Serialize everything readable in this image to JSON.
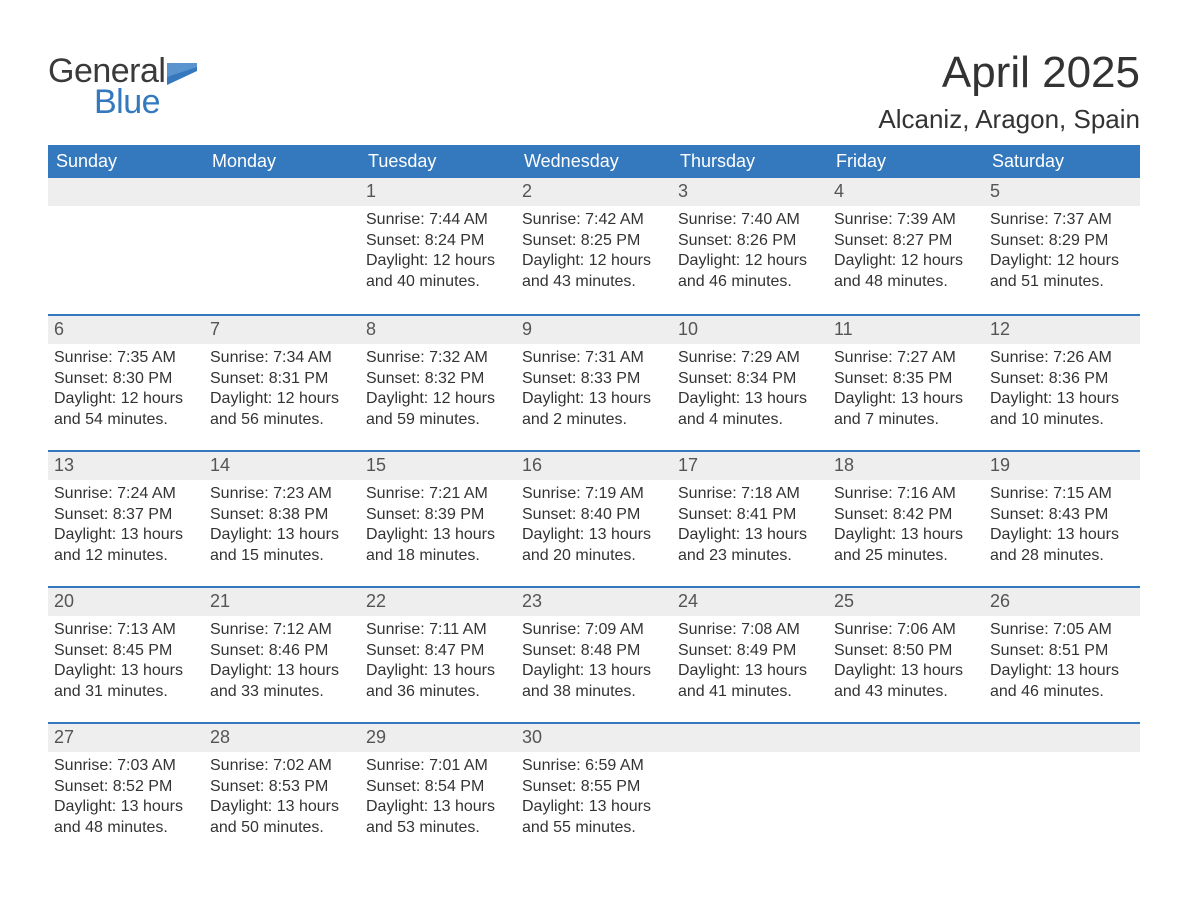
{
  "logo": {
    "word1": "General",
    "word2": "Blue",
    "word1_color": "#3a3a3a",
    "word2_color": "#3478bd",
    "flag_color": "#3478bd"
  },
  "title": "April 2025",
  "location": "Alcaniz, Aragon, Spain",
  "colors": {
    "header_bg": "#3478bd",
    "header_text": "#ffffff",
    "daynum_bg": "#eeeeee",
    "week_border": "#3478bd",
    "body_text": "#333333",
    "background": "#ffffff"
  },
  "fonts": {
    "title_size": 44,
    "location_size": 26,
    "day_header_size": 18,
    "daynum_size": 18,
    "detail_size": 16,
    "logo_size": 34
  },
  "day_headers": [
    "Sunday",
    "Monday",
    "Tuesday",
    "Wednesday",
    "Thursday",
    "Friday",
    "Saturday"
  ],
  "weeks": [
    [
      {
        "day": "",
        "sunrise": "",
        "sunset": "",
        "daylight1": "",
        "daylight2": ""
      },
      {
        "day": "",
        "sunrise": "",
        "sunset": "",
        "daylight1": "",
        "daylight2": ""
      },
      {
        "day": "1",
        "sunrise": "Sunrise: 7:44 AM",
        "sunset": "Sunset: 8:24 PM",
        "daylight1": "Daylight: 12 hours",
        "daylight2": "and 40 minutes."
      },
      {
        "day": "2",
        "sunrise": "Sunrise: 7:42 AM",
        "sunset": "Sunset: 8:25 PM",
        "daylight1": "Daylight: 12 hours",
        "daylight2": "and 43 minutes."
      },
      {
        "day": "3",
        "sunrise": "Sunrise: 7:40 AM",
        "sunset": "Sunset: 8:26 PM",
        "daylight1": "Daylight: 12 hours",
        "daylight2": "and 46 minutes."
      },
      {
        "day": "4",
        "sunrise": "Sunrise: 7:39 AM",
        "sunset": "Sunset: 8:27 PM",
        "daylight1": "Daylight: 12 hours",
        "daylight2": "and 48 minutes."
      },
      {
        "day": "5",
        "sunrise": "Sunrise: 7:37 AM",
        "sunset": "Sunset: 8:29 PM",
        "daylight1": "Daylight: 12 hours",
        "daylight2": "and 51 minutes."
      }
    ],
    [
      {
        "day": "6",
        "sunrise": "Sunrise: 7:35 AM",
        "sunset": "Sunset: 8:30 PM",
        "daylight1": "Daylight: 12 hours",
        "daylight2": "and 54 minutes."
      },
      {
        "day": "7",
        "sunrise": "Sunrise: 7:34 AM",
        "sunset": "Sunset: 8:31 PM",
        "daylight1": "Daylight: 12 hours",
        "daylight2": "and 56 minutes."
      },
      {
        "day": "8",
        "sunrise": "Sunrise: 7:32 AM",
        "sunset": "Sunset: 8:32 PM",
        "daylight1": "Daylight: 12 hours",
        "daylight2": "and 59 minutes."
      },
      {
        "day": "9",
        "sunrise": "Sunrise: 7:31 AM",
        "sunset": "Sunset: 8:33 PM",
        "daylight1": "Daylight: 13 hours",
        "daylight2": "and 2 minutes."
      },
      {
        "day": "10",
        "sunrise": "Sunrise: 7:29 AM",
        "sunset": "Sunset: 8:34 PM",
        "daylight1": "Daylight: 13 hours",
        "daylight2": "and 4 minutes."
      },
      {
        "day": "11",
        "sunrise": "Sunrise: 7:27 AM",
        "sunset": "Sunset: 8:35 PM",
        "daylight1": "Daylight: 13 hours",
        "daylight2": "and 7 minutes."
      },
      {
        "day": "12",
        "sunrise": "Sunrise: 7:26 AM",
        "sunset": "Sunset: 8:36 PM",
        "daylight1": "Daylight: 13 hours",
        "daylight2": "and 10 minutes."
      }
    ],
    [
      {
        "day": "13",
        "sunrise": "Sunrise: 7:24 AM",
        "sunset": "Sunset: 8:37 PM",
        "daylight1": "Daylight: 13 hours",
        "daylight2": "and 12 minutes."
      },
      {
        "day": "14",
        "sunrise": "Sunrise: 7:23 AM",
        "sunset": "Sunset: 8:38 PM",
        "daylight1": "Daylight: 13 hours",
        "daylight2": "and 15 minutes."
      },
      {
        "day": "15",
        "sunrise": "Sunrise: 7:21 AM",
        "sunset": "Sunset: 8:39 PM",
        "daylight1": "Daylight: 13 hours",
        "daylight2": "and 18 minutes."
      },
      {
        "day": "16",
        "sunrise": "Sunrise: 7:19 AM",
        "sunset": "Sunset: 8:40 PM",
        "daylight1": "Daylight: 13 hours",
        "daylight2": "and 20 minutes."
      },
      {
        "day": "17",
        "sunrise": "Sunrise: 7:18 AM",
        "sunset": "Sunset: 8:41 PM",
        "daylight1": "Daylight: 13 hours",
        "daylight2": "and 23 minutes."
      },
      {
        "day": "18",
        "sunrise": "Sunrise: 7:16 AM",
        "sunset": "Sunset: 8:42 PM",
        "daylight1": "Daylight: 13 hours",
        "daylight2": "and 25 minutes."
      },
      {
        "day": "19",
        "sunrise": "Sunrise: 7:15 AM",
        "sunset": "Sunset: 8:43 PM",
        "daylight1": "Daylight: 13 hours",
        "daylight2": "and 28 minutes."
      }
    ],
    [
      {
        "day": "20",
        "sunrise": "Sunrise: 7:13 AM",
        "sunset": "Sunset: 8:45 PM",
        "daylight1": "Daylight: 13 hours",
        "daylight2": "and 31 minutes."
      },
      {
        "day": "21",
        "sunrise": "Sunrise: 7:12 AM",
        "sunset": "Sunset: 8:46 PM",
        "daylight1": "Daylight: 13 hours",
        "daylight2": "and 33 minutes."
      },
      {
        "day": "22",
        "sunrise": "Sunrise: 7:11 AM",
        "sunset": "Sunset: 8:47 PM",
        "daylight1": "Daylight: 13 hours",
        "daylight2": "and 36 minutes."
      },
      {
        "day": "23",
        "sunrise": "Sunrise: 7:09 AM",
        "sunset": "Sunset: 8:48 PM",
        "daylight1": "Daylight: 13 hours",
        "daylight2": "and 38 minutes."
      },
      {
        "day": "24",
        "sunrise": "Sunrise: 7:08 AM",
        "sunset": "Sunset: 8:49 PM",
        "daylight1": "Daylight: 13 hours",
        "daylight2": "and 41 minutes."
      },
      {
        "day": "25",
        "sunrise": "Sunrise: 7:06 AM",
        "sunset": "Sunset: 8:50 PM",
        "daylight1": "Daylight: 13 hours",
        "daylight2": "and 43 minutes."
      },
      {
        "day": "26",
        "sunrise": "Sunrise: 7:05 AM",
        "sunset": "Sunset: 8:51 PM",
        "daylight1": "Daylight: 13 hours",
        "daylight2": "and 46 minutes."
      }
    ],
    [
      {
        "day": "27",
        "sunrise": "Sunrise: 7:03 AM",
        "sunset": "Sunset: 8:52 PM",
        "daylight1": "Daylight: 13 hours",
        "daylight2": "and 48 minutes."
      },
      {
        "day": "28",
        "sunrise": "Sunrise: 7:02 AM",
        "sunset": "Sunset: 8:53 PM",
        "daylight1": "Daylight: 13 hours",
        "daylight2": "and 50 minutes."
      },
      {
        "day": "29",
        "sunrise": "Sunrise: 7:01 AM",
        "sunset": "Sunset: 8:54 PM",
        "daylight1": "Daylight: 13 hours",
        "daylight2": "and 53 minutes."
      },
      {
        "day": "30",
        "sunrise": "Sunrise: 6:59 AM",
        "sunset": "Sunset: 8:55 PM",
        "daylight1": "Daylight: 13 hours",
        "daylight2": "and 55 minutes."
      },
      {
        "day": "",
        "sunrise": "",
        "sunset": "",
        "daylight1": "",
        "daylight2": ""
      },
      {
        "day": "",
        "sunrise": "",
        "sunset": "",
        "daylight1": "",
        "daylight2": ""
      },
      {
        "day": "",
        "sunrise": "",
        "sunset": "",
        "daylight1": "",
        "daylight2": ""
      }
    ]
  ]
}
